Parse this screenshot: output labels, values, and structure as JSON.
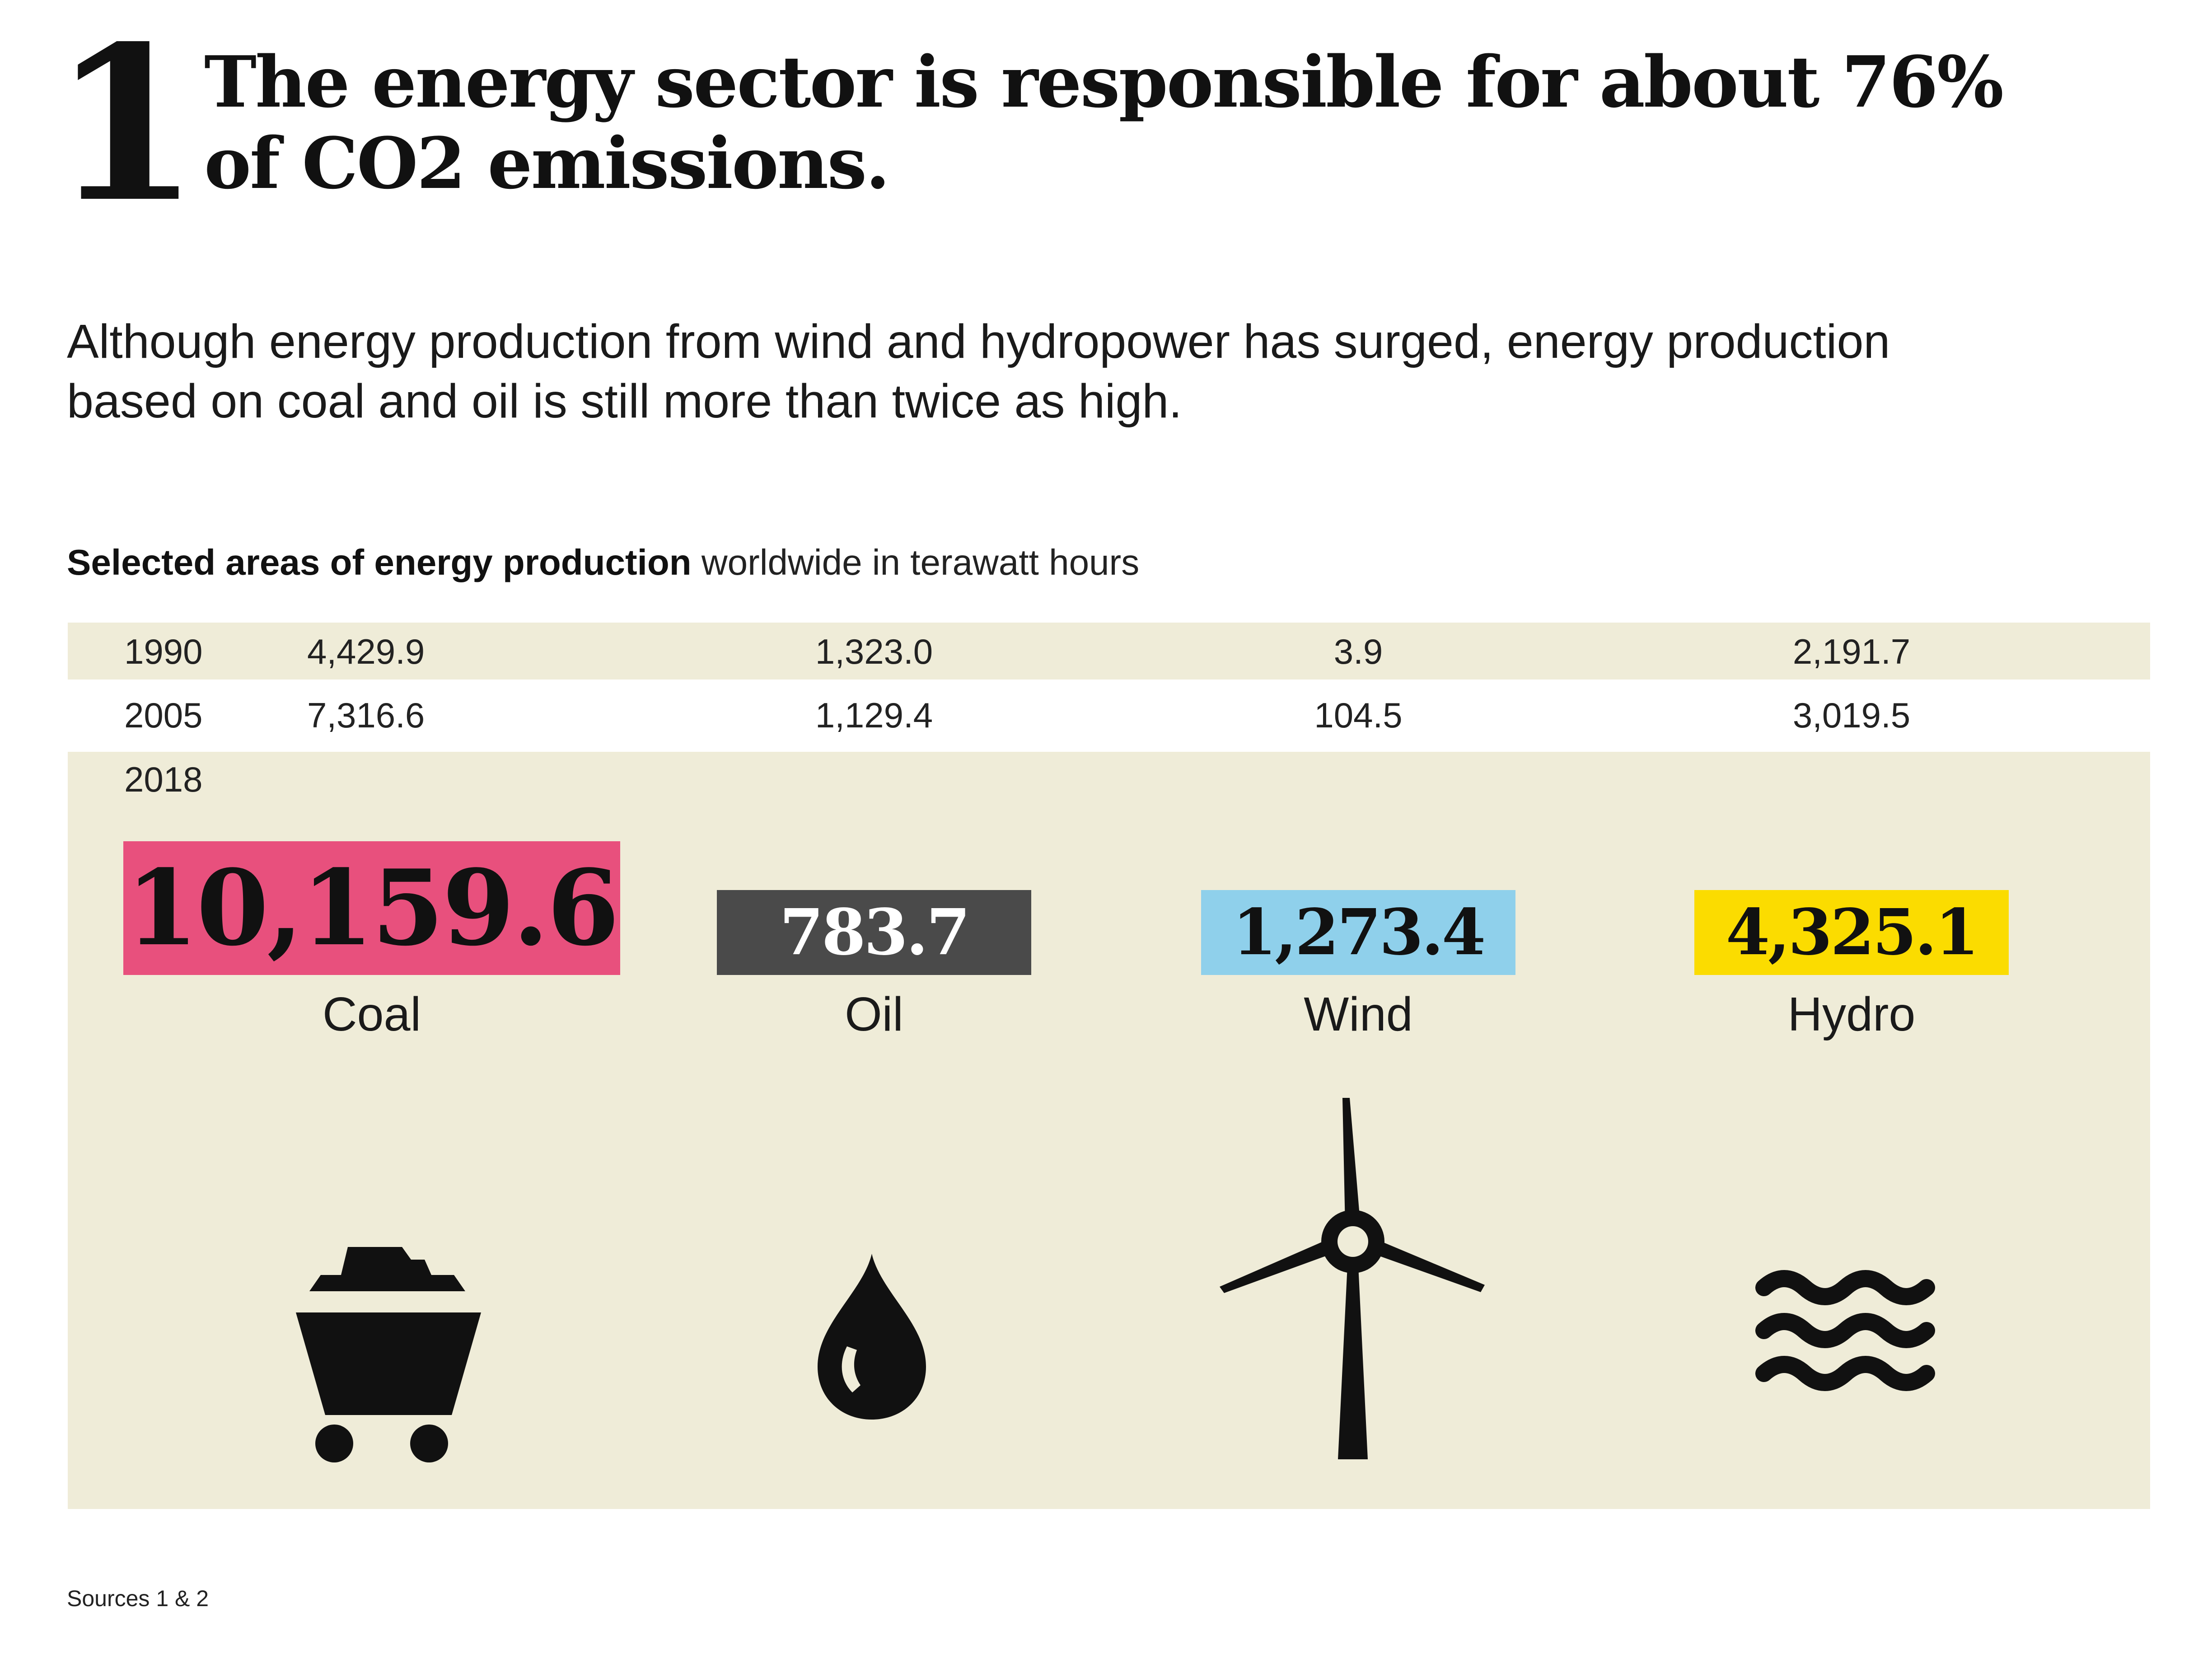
{
  "heading": {
    "number": "1",
    "title_line1": "The energy sector is responsible for about 76%",
    "title_line2": "of CO2 emissions."
  },
  "intro": {
    "line1": "Although energy production from wind and hydropower has surged, energy production",
    "line2": "based on coal and oil is still more than twice as high."
  },
  "subtitle": {
    "strong": "Selected areas of energy production",
    "rest": " worldwide in terawatt hours"
  },
  "chart_data": {
    "type": "table",
    "title": "Selected areas of energy production worldwide in terawatt hours",
    "unit": "terawatt hours",
    "categories": [
      "Coal",
      "Oil",
      "Wind",
      "Hydro"
    ],
    "colors": {
      "Coal": "#e8507d",
      "Oil": "#4a4a4a",
      "Wind": "#8fd0eb",
      "Hydro": "#fbdc00"
    },
    "rows": [
      {
        "year": "1990",
        "values": [
          "4,429.9",
          "1,323.0",
          "3.9",
          "2,191.7"
        ]
      },
      {
        "year": "2005",
        "values": [
          "7,316.6",
          "1,129.4",
          "104.5",
          "3,019.5"
        ]
      },
      {
        "year": "2018",
        "values": [
          "10,159.6",
          "783.7",
          "1,273.4",
          "4,325.1"
        ]
      }
    ]
  },
  "icons": [
    "coal-cart-icon",
    "oil-drop-icon",
    "wind-turbine-icon",
    "water-waves-icon"
  ],
  "footer": {
    "sources": "Sources 1 & 2"
  }
}
